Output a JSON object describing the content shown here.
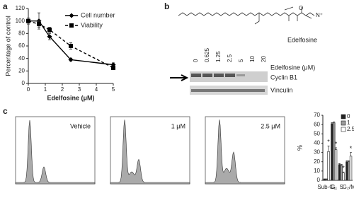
{
  "panels": [
    "a",
    "b",
    "c"
  ],
  "chart_data": [
    {
      "type": "line",
      "xlabel": "Edelfosine (μM)",
      "ylabel": "Percentage of control",
      "x": [
        0,
        0.625,
        1.25,
        2.5,
        5
      ],
      "series": [
        {
          "name": "Cell number",
          "color": "#000000",
          "marker": "diamond",
          "dashed": false,
          "values": [
            100,
            100,
            75,
            38,
            30
          ],
          "errors": [
            3,
            13,
            5,
            2,
            3
          ]
        },
        {
          "name": "Viability",
          "color": "#000000",
          "marker": "square",
          "dashed": true,
          "values": [
            100,
            95,
            86,
            60,
            25
          ],
          "errors": [
            5,
            5,
            4,
            5,
            3
          ]
        }
      ],
      "xlim": [
        0,
        5
      ],
      "xticks": [
        0,
        1,
        2,
        3,
        4,
        5
      ],
      "ylim": [
        0,
        120
      ],
      "yticks": [
        0,
        20,
        40,
        60,
        80,
        100,
        120
      ],
      "legend": "top-right"
    },
    {
      "type": "grouped-bar",
      "ylabel": "%",
      "categories": [
        "Sub-G₁",
        "G₁",
        "S",
        "G₂/M"
      ],
      "series": [
        {
          "name": "0",
          "color": "#222222",
          "values": [
            1,
            61,
            17,
            20
          ],
          "errors": [
            0.5,
            1,
            1,
            1
          ],
          "annotations": [
            null,
            null,
            null,
            null
          ]
        },
        {
          "name": "1",
          "color": "#9a9a9a",
          "values": [
            1,
            62,
            16,
            20
          ],
          "errors": [
            0.5,
            1,
            1,
            1
          ],
          "annotations": [
            null,
            null,
            null,
            null
          ]
        },
        {
          "name": "2.5",
          "color": "#ffffff",
          "values": [
            31,
            33,
            8,
            26
          ],
          "errors": [
            6,
            2,
            1,
            4
          ],
          "annotations": [
            "*",
            "*",
            "*",
            "*"
          ]
        }
      ],
      "ylim": [
        0,
        70
      ],
      "yticks": [
        0,
        10,
        20,
        30,
        40,
        50,
        60,
        70
      ],
      "legend": "top-right"
    }
  ],
  "structure": {
    "label": "Edelfosine"
  },
  "blot": {
    "treatment": "Edelfosine (μM)",
    "lanes": [
      "0",
      "0.625",
      "1.25",
      "2.5",
      "5",
      "10",
      "20"
    ],
    "proteins": [
      "Cyclin B1",
      "Vinculin"
    ]
  },
  "histograms": [
    "Vehicle",
    "1 μM",
    "2.5 μM"
  ]
}
